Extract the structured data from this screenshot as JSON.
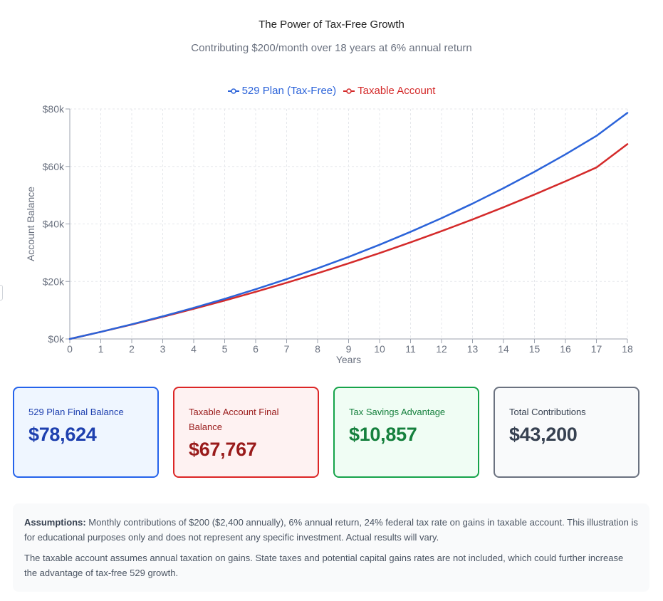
{
  "chart_data": {
    "type": "line",
    "title": "The Power of Tax-Free Growth",
    "subtitle": "Contributing $200/month over 18 years at 6% annual return",
    "xlabel": "Years",
    "ylabel": "Account Balance",
    "x": [
      0,
      1,
      2,
      3,
      4,
      5,
      6,
      7,
      8,
      9,
      10,
      11,
      12,
      13,
      14,
      15,
      16,
      17,
      18
    ],
    "xlim": [
      0,
      18
    ],
    "ylim": [
      0,
      80000
    ],
    "yticks": [
      0,
      20000,
      40000,
      60000,
      80000
    ],
    "ytick_labels": [
      "$0k",
      "$20k",
      "$40k",
      "$60k",
      "$80k"
    ],
    "grid": true,
    "legend_position": "top-center",
    "series": [
      {
        "name": "529 Plan (Tax-Free)",
        "color": "#2b63d9",
        "values": [
          0,
          2466,
          5085,
          7865,
          10817,
          13951,
          17278,
          20810,
          24560,
          28541,
          32767,
          37254,
          42017,
          47075,
          52444,
          58145,
          64197,
          70622,
          78624
        ]
      },
      {
        "name": "Taxable Account",
        "color": "#d42a2a",
        "values": [
          0,
          2456,
          5017,
          7687,
          10472,
          13376,
          16404,
          19562,
          22855,
          26290,
          29872,
          33608,
          37504,
          41567,
          45805,
          50225,
          54835,
          59643,
          67767
        ]
      }
    ]
  },
  "cards": [
    {
      "label": "529 Plan Final Balance",
      "value": "$78,624"
    },
    {
      "label": "Taxable Account Final Balance",
      "value": "$67,767"
    },
    {
      "label": "Tax Savings Advantage",
      "value": "$10,857"
    },
    {
      "label": "Total Contributions",
      "value": "$43,200"
    }
  ],
  "notes": {
    "assumptions_label": "Assumptions:",
    "assumptions_text": " Monthly contributions of $200 ($2,400 annually), 6% annual return, 24% federal tax rate on gains in taxable account. This illustration is for educational purposes only and does not represent any specific investment. Actual results will vary.",
    "taxable_note": "The taxable account assumes annual taxation on gains. State taxes and potential capital gains rates are not included, which could further increase the advantage of tax-free 529 growth."
  }
}
